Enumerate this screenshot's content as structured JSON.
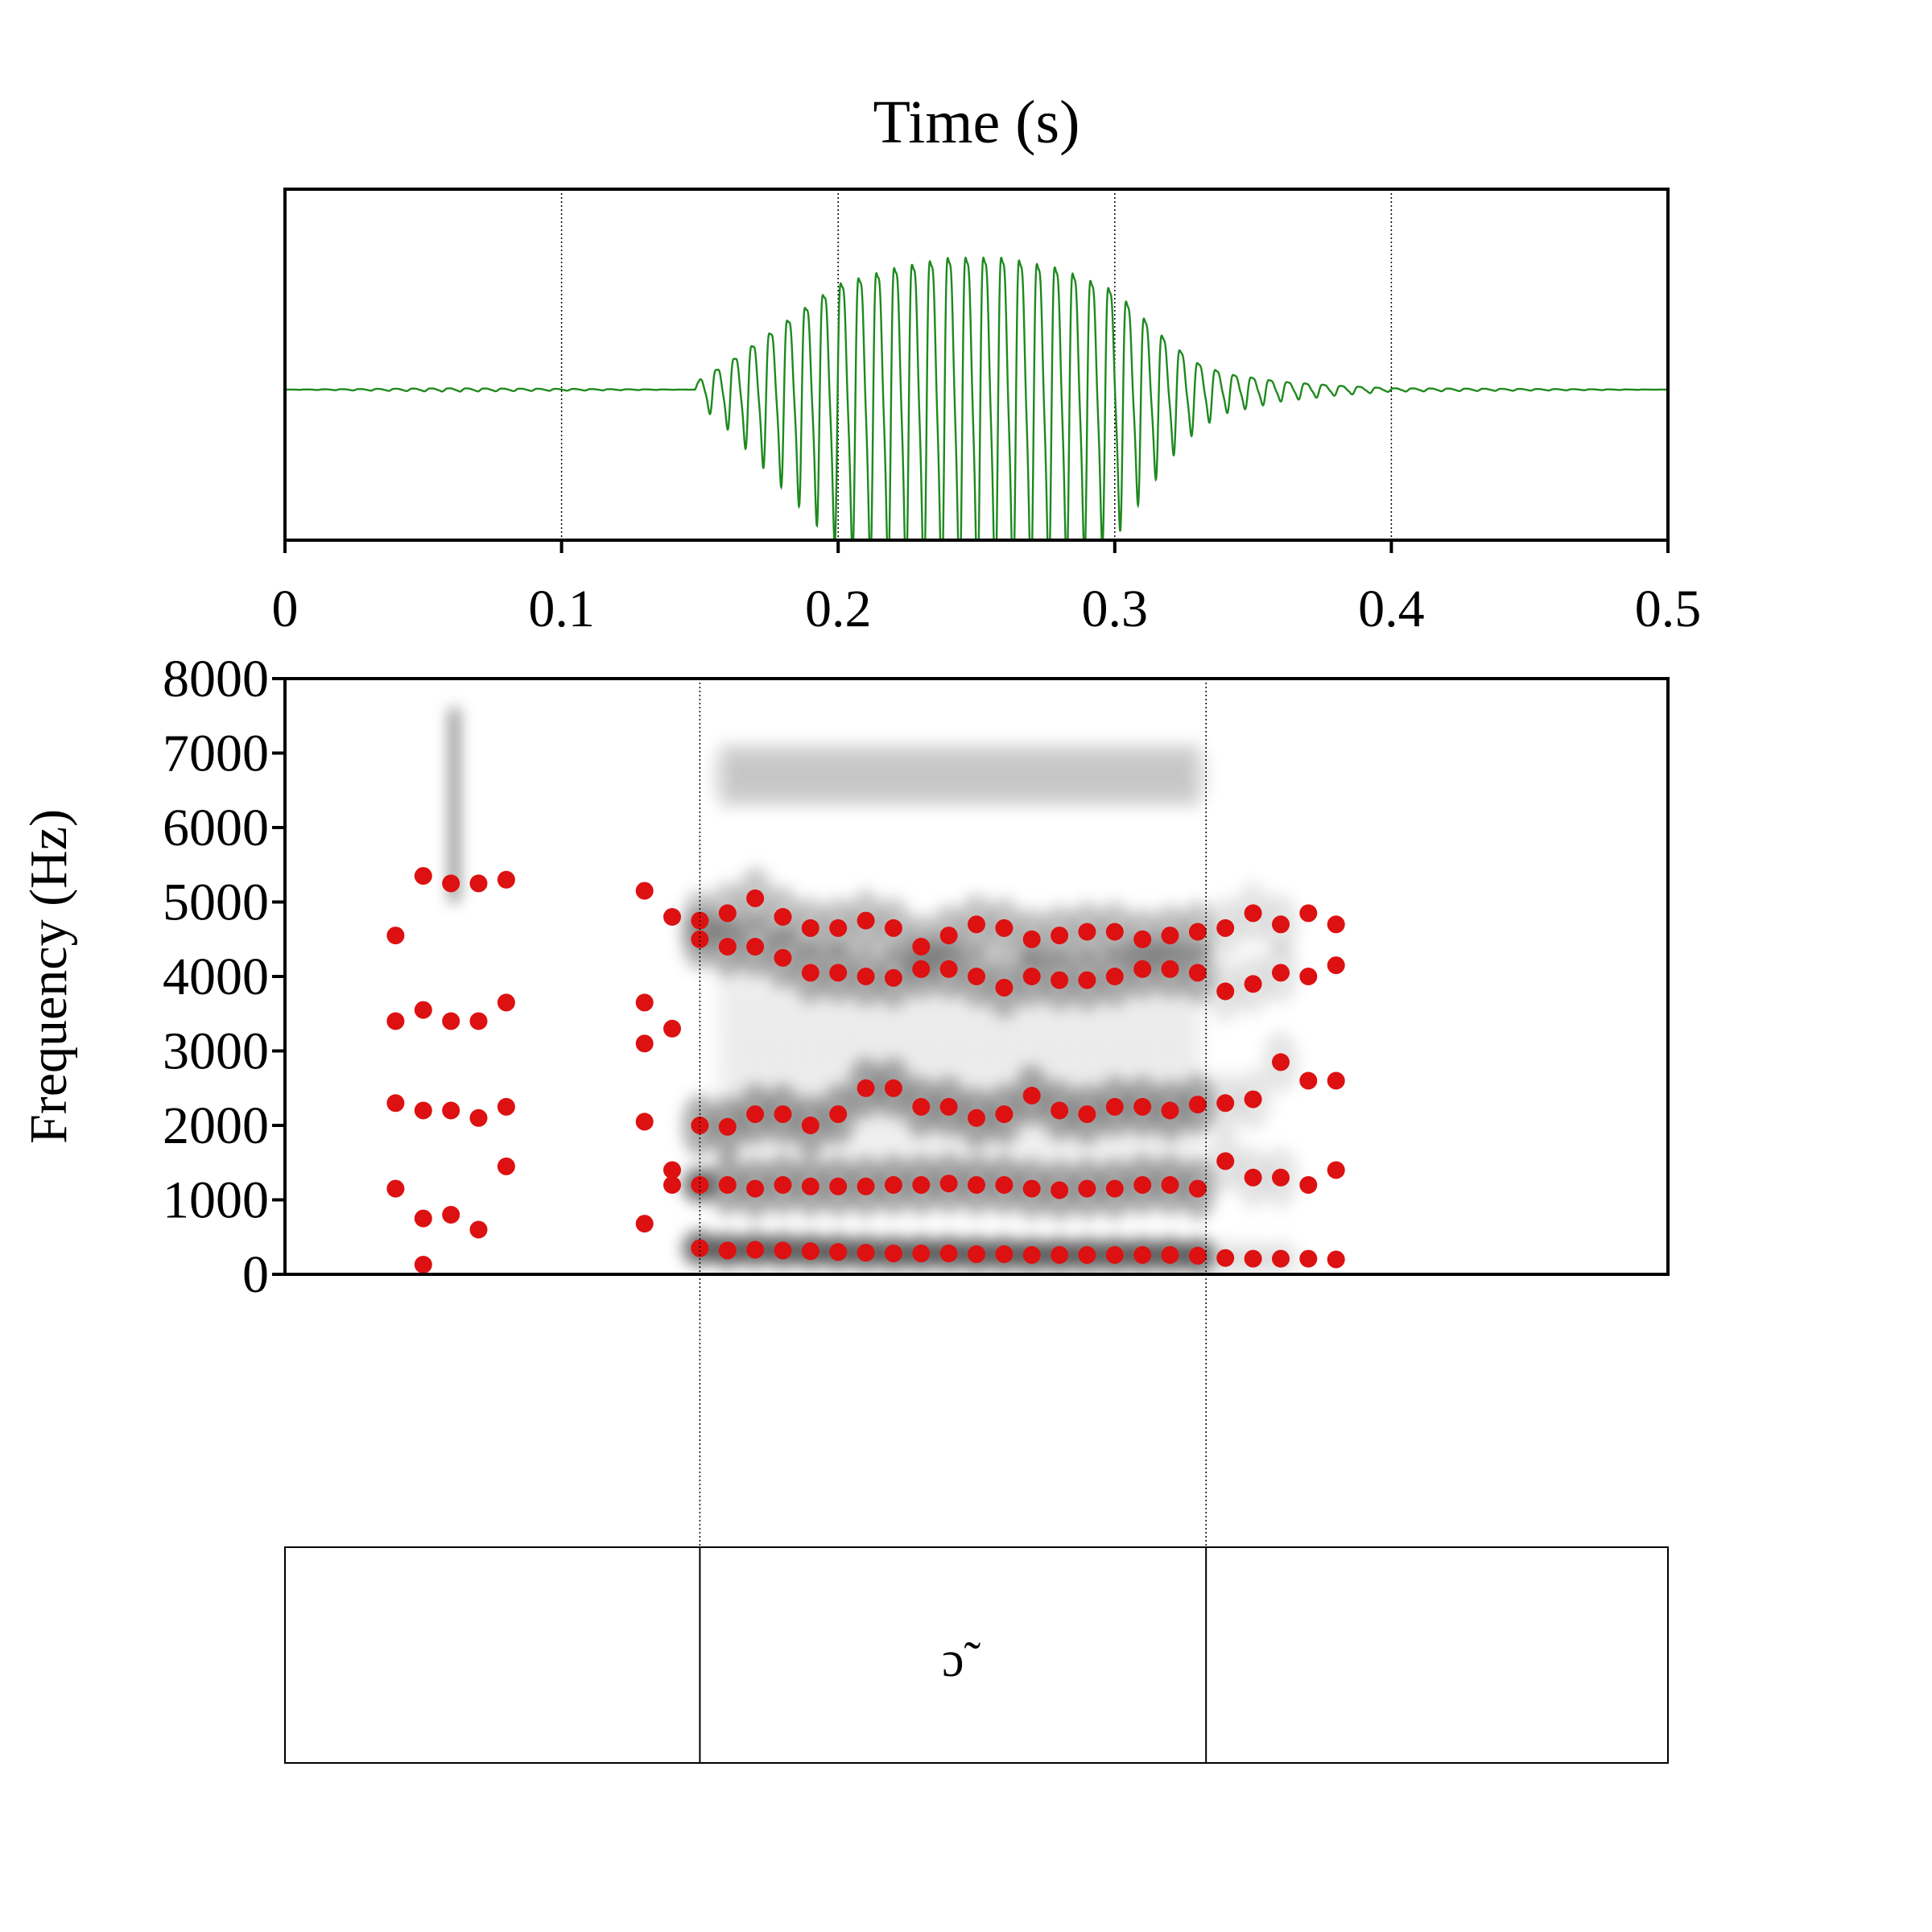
{
  "title": "Time (s)",
  "colors": {
    "waveform": "#1e8a1e",
    "formant": "#dd1111",
    "spectrogram": "#000000",
    "axis": "#000000"
  },
  "chart_data": [
    {
      "type": "line",
      "panel": "waveform",
      "xlabel": "Time (s)",
      "xlim": [
        0,
        0.5
      ],
      "ylim": [
        -1,
        1
      ],
      "grid": "vertical dotted lines at 0.1 s intervals",
      "x_ticks": [
        "0",
        "0.1",
        "0.2",
        "0.3",
        "0.4",
        "0.5"
      ],
      "x_tick_values": [
        0,
        0.1,
        0.2,
        0.3,
        0.4,
        0.5
      ],
      "envelope": [
        [
          0.0,
          0.0
        ],
        [
          0.06,
          0.01
        ],
        [
          0.148,
          0.0
        ],
        [
          0.15,
          0.08
        ],
        [
          0.16,
          0.2
        ],
        [
          0.17,
          0.35
        ],
        [
          0.18,
          0.5
        ],
        [
          0.19,
          0.65
        ],
        [
          0.2,
          0.8
        ],
        [
          0.22,
          0.92
        ],
        [
          0.24,
          1.0
        ],
        [
          0.26,
          1.0
        ],
        [
          0.28,
          0.92
        ],
        [
          0.3,
          0.75
        ],
        [
          0.31,
          0.55
        ],
        [
          0.32,
          0.35
        ],
        [
          0.33,
          0.2
        ],
        [
          0.34,
          0.12
        ],
        [
          0.36,
          0.06
        ],
        [
          0.38,
          0.03
        ],
        [
          0.4,
          0.01
        ],
        [
          0.5,
          0.0
        ]
      ]
    },
    {
      "type": "scatter",
      "panel": "spectrogram",
      "ylabel": "Frequency (Hz)",
      "xlim": [
        0,
        0.5
      ],
      "ylim": [
        0,
        8000
      ],
      "y_ticks": [
        "0",
        "1000",
        "2000",
        "3000",
        "4000",
        "5000",
        "6000",
        "7000",
        "8000"
      ],
      "y_tick_values": [
        0,
        1000,
        2000,
        3000,
        4000,
        5000,
        6000,
        7000,
        8000
      ],
      "boundaries": [
        0.15,
        0.333
      ],
      "series": [
        {
          "values": [
            [
              0.04,
              1150
            ],
            [
              0.05,
              130
            ],
            [
              0.05,
              750
            ],
            [
              0.06,
              800
            ],
            [
              0.07,
              600
            ],
            [
              0.08,
              1450
            ],
            [
              0.13,
              680
            ],
            [
              0.14,
              1200
            ],
            [
              0.14,
              1400
            ],
            [
              0.15,
              350
            ],
            [
              0.15,
              1200
            ],
            [
              0.16,
              320
            ],
            [
              0.17,
              330
            ],
            [
              0.18,
              320
            ],
            [
              0.19,
              310
            ],
            [
              0.2,
              300
            ],
            [
              0.21,
              290
            ],
            [
              0.22,
              280
            ],
            [
              0.23,
              280
            ],
            [
              0.24,
              280
            ],
            [
              0.25,
              270
            ],
            [
              0.26,
              270
            ],
            [
              0.27,
              260
            ],
            [
              0.28,
              260
            ],
            [
              0.29,
              260
            ],
            [
              0.3,
              260
            ],
            [
              0.31,
              260
            ],
            [
              0.32,
              260
            ],
            [
              0.33,
              250
            ],
            [
              0.34,
              220
            ],
            [
              0.35,
              210
            ],
            [
              0.36,
              210
            ],
            [
              0.37,
              210
            ],
            [
              0.38,
              200
            ]
          ]
        },
        {
          "values": [
            [
              0.04,
              2300
            ],
            [
              0.05,
              2200
            ],
            [
              0.06,
              2200
            ],
            [
              0.07,
              2100
            ],
            [
              0.08,
              2250
            ],
            [
              0.13,
              2050
            ],
            [
              0.15,
              2000
            ],
            [
              0.16,
              1200
            ],
            [
              0.16,
              1980
            ],
            [
              0.17,
              1150
            ],
            [
              0.17,
              2150
            ],
            [
              0.18,
              1200
            ],
            [
              0.18,
              2150
            ],
            [
              0.19,
              1180
            ],
            [
              0.19,
              2000
            ],
            [
              0.2,
              1180
            ],
            [
              0.2,
              2150
            ],
            [
              0.21,
              1180
            ],
            [
              0.21,
              2500
            ],
            [
              0.22,
              1200
            ],
            [
              0.22,
              2500
            ],
            [
              0.23,
              1200
            ],
            [
              0.23,
              2250
            ],
            [
              0.24,
              1220
            ],
            [
              0.24,
              2250
            ],
            [
              0.25,
              1200
            ],
            [
              0.25,
              2100
            ],
            [
              0.26,
              1200
            ],
            [
              0.26,
              2150
            ],
            [
              0.27,
              1150
            ],
            [
              0.27,
              2400
            ],
            [
              0.28,
              1130
            ],
            [
              0.28,
              2200
            ],
            [
              0.29,
              1150
            ],
            [
              0.29,
              2150
            ],
            [
              0.3,
              1150
            ],
            [
              0.3,
              2250
            ],
            [
              0.31,
              1200
            ],
            [
              0.31,
              2250
            ],
            [
              0.32,
              1200
            ],
            [
              0.32,
              2200
            ],
            [
              0.33,
              1150
            ],
            [
              0.33,
              2280
            ],
            [
              0.34,
              1520
            ],
            [
              0.34,
              2300
            ],
            [
              0.35,
              1300
            ],
            [
              0.35,
              2350
            ],
            [
              0.36,
              1300
            ],
            [
              0.36,
              2850
            ],
            [
              0.37,
              1200
            ],
            [
              0.37,
              2600
            ],
            [
              0.38,
              1400
            ],
            [
              0.38,
              2600
            ]
          ]
        },
        {
          "values": [
            [
              0.04,
              3400
            ],
            [
              0.05,
              3550
            ],
            [
              0.06,
              3400
            ],
            [
              0.07,
              3400
            ],
            [
              0.08,
              3650
            ],
            [
              0.13,
              3100
            ],
            [
              0.13,
              3650
            ],
            [
              0.14,
              3300
            ],
            [
              0.15,
              4500
            ],
            [
              0.16,
              4400
            ],
            [
              0.17,
              4400
            ],
            [
              0.18,
              4250
            ],
            [
              0.19,
              4050
            ],
            [
              0.2,
              4050
            ],
            [
              0.21,
              4000
            ],
            [
              0.22,
              3980
            ],
            [
              0.23,
              4100
            ],
            [
              0.24,
              4100
            ],
            [
              0.25,
              4000
            ],
            [
              0.26,
              3850
            ],
            [
              0.27,
              4000
            ],
            [
              0.28,
              3950
            ],
            [
              0.29,
              3950
            ],
            [
              0.3,
              4000
            ],
            [
              0.31,
              4100
            ],
            [
              0.32,
              4100
            ],
            [
              0.33,
              4050
            ],
            [
              0.34,
              3800
            ],
            [
              0.35,
              3900
            ],
            [
              0.36,
              4050
            ],
            [
              0.37,
              4000
            ],
            [
              0.38,
              4150
            ]
          ]
        },
        {
          "values": [
            [
              0.04,
              4550
            ],
            [
              0.05,
              5350
            ],
            [
              0.06,
              5250
            ],
            [
              0.07,
              5250
            ],
            [
              0.08,
              5300
            ],
            [
              0.13,
              5150
            ],
            [
              0.14,
              4800
            ],
            [
              0.15,
              4750
            ],
            [
              0.16,
              4850
            ],
            [
              0.17,
              5050
            ],
            [
              0.18,
              4800
            ],
            [
              0.19,
              4650
            ],
            [
              0.2,
              4650
            ],
            [
              0.21,
              4750
            ],
            [
              0.22,
              4650
            ],
            [
              0.23,
              4400
            ],
            [
              0.24,
              4550
            ],
            [
              0.25,
              4700
            ],
            [
              0.26,
              4650
            ],
            [
              0.27,
              4500
            ],
            [
              0.28,
              4550
            ],
            [
              0.29,
              4600
            ],
            [
              0.3,
              4600
            ],
            [
              0.31,
              4500
            ],
            [
              0.32,
              4550
            ],
            [
              0.33,
              4600
            ],
            [
              0.34,
              4650
            ],
            [
              0.35,
              4850
            ],
            [
              0.36,
              4700
            ],
            [
              0.37,
              4850
            ],
            [
              0.38,
              4700
            ]
          ]
        }
      ]
    }
  ],
  "tiers": [
    {
      "intervals": [
        {
          "label": ""
        },
        {
          "label": "ɔ̃"
        },
        {
          "label": ""
        }
      ]
    }
  ]
}
